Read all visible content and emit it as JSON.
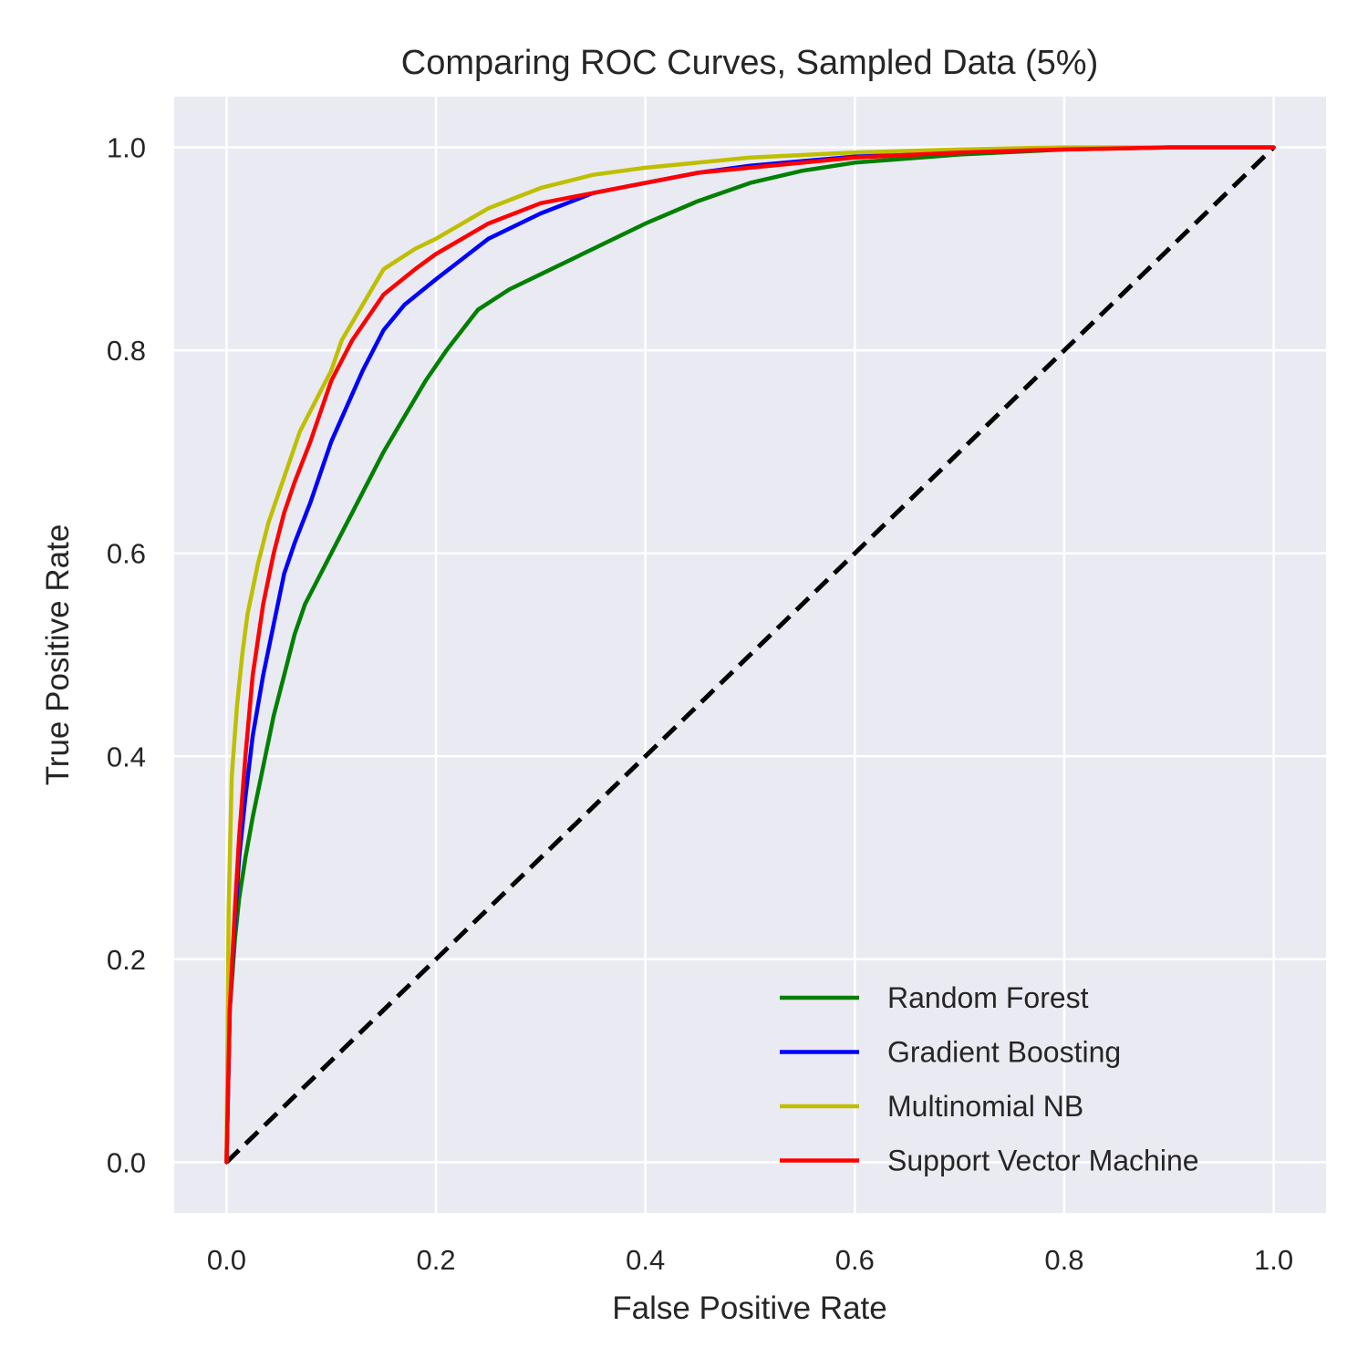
{
  "chart_data": {
    "type": "line",
    "title": "Comparing ROC Curves, Sampled Data (5%)",
    "xlabel": "False Positive Rate",
    "ylabel": "True Positive Rate",
    "xlim": [
      -0.05,
      1.05
    ],
    "ylim": [
      -0.05,
      1.05
    ],
    "xticks": [
      "0.0",
      "0.2",
      "0.4",
      "0.6",
      "0.8",
      "1.0"
    ],
    "yticks": [
      "0.0",
      "0.2",
      "0.4",
      "0.6",
      "0.8",
      "1.0"
    ],
    "grid": true,
    "legend_position": "lower-right",
    "background_color": "#EAEAF2",
    "grid_color": "#FFFFFF",
    "series": [
      {
        "name": "Random Forest",
        "color": "#008000",
        "x": [
          0,
          0.003,
          0.008,
          0.012,
          0.018,
          0.025,
          0.035,
          0.045,
          0.055,
          0.065,
          0.075,
          0.085,
          0.1,
          0.12,
          0.15,
          0.19,
          0.21,
          0.24,
          0.27,
          0.3,
          0.35,
          0.4,
          0.45,
          0.5,
          0.55,
          0.6,
          0.7,
          0.8,
          0.9,
          1.0
        ],
        "y": [
          0,
          0.15,
          0.22,
          0.26,
          0.3,
          0.34,
          0.39,
          0.44,
          0.48,
          0.52,
          0.55,
          0.57,
          0.6,
          0.64,
          0.7,
          0.77,
          0.8,
          0.84,
          0.86,
          0.875,
          0.9,
          0.925,
          0.947,
          0.965,
          0.977,
          0.985,
          0.993,
          0.998,
          1.0,
          1.0
        ]
      },
      {
        "name": "Gradient Boosting",
        "color": "#0000FF",
        "x": [
          0,
          0.003,
          0.008,
          0.012,
          0.018,
          0.025,
          0.035,
          0.045,
          0.055,
          0.065,
          0.08,
          0.1,
          0.13,
          0.15,
          0.17,
          0.2,
          0.25,
          0.3,
          0.35,
          0.4,
          0.45,
          0.5,
          0.6,
          0.7,
          0.8,
          0.9,
          1.0
        ],
        "y": [
          0,
          0.15,
          0.24,
          0.3,
          0.36,
          0.42,
          0.48,
          0.53,
          0.58,
          0.61,
          0.65,
          0.71,
          0.78,
          0.82,
          0.845,
          0.87,
          0.91,
          0.935,
          0.955,
          0.965,
          0.975,
          0.982,
          0.991,
          0.996,
          0.999,
          1.0,
          1.0
        ]
      },
      {
        "name": "Multinomial NB",
        "color": "#BFBF00",
        "x": [
          0,
          0.002,
          0.005,
          0.01,
          0.015,
          0.02,
          0.03,
          0.04,
          0.05,
          0.06,
          0.07,
          0.08,
          0.09,
          0.1,
          0.11,
          0.13,
          0.15,
          0.18,
          0.2,
          0.25,
          0.3,
          0.35,
          0.4,
          0.5,
          0.6,
          0.7,
          0.8,
          0.9,
          1.0
        ],
        "y": [
          0,
          0.25,
          0.38,
          0.45,
          0.5,
          0.54,
          0.59,
          0.63,
          0.66,
          0.69,
          0.72,
          0.74,
          0.76,
          0.78,
          0.81,
          0.845,
          0.88,
          0.9,
          0.91,
          0.94,
          0.96,
          0.973,
          0.98,
          0.99,
          0.995,
          0.998,
          1.0,
          1.0,
          1.0
        ]
      },
      {
        "name": "Support Vector Machine",
        "color": "#FF0000",
        "x": [
          0,
          0.003,
          0.008,
          0.012,
          0.018,
          0.025,
          0.035,
          0.045,
          0.055,
          0.065,
          0.08,
          0.1,
          0.12,
          0.15,
          0.18,
          0.2,
          0.25,
          0.3,
          0.35,
          0.4,
          0.45,
          0.5,
          0.6,
          0.7,
          0.8,
          0.9,
          1.0
        ],
        "y": [
          0,
          0.15,
          0.25,
          0.32,
          0.4,
          0.48,
          0.55,
          0.6,
          0.64,
          0.67,
          0.71,
          0.77,
          0.81,
          0.855,
          0.88,
          0.895,
          0.925,
          0.945,
          0.955,
          0.965,
          0.975,
          0.98,
          0.99,
          0.995,
          0.998,
          1.0,
          1.0
        ]
      }
    ],
    "reference_line": {
      "x": [
        0,
        1
      ],
      "y": [
        0,
        1
      ],
      "color": "#000000",
      "style": "dashed"
    }
  }
}
